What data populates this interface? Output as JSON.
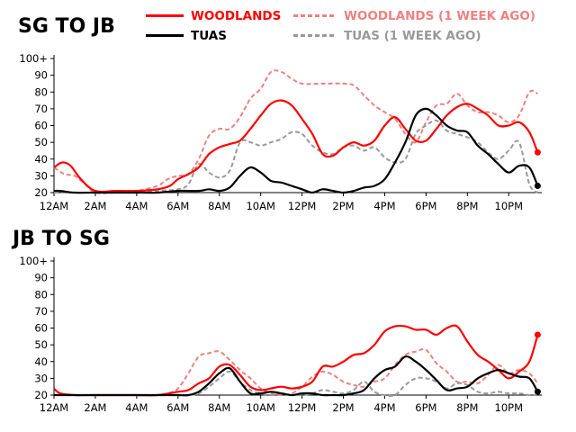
{
  "chart_data": [
    {
      "type": "line",
      "title": "SG TO JB",
      "x_ticks": [
        "12AM",
        "2AM",
        "4AM",
        "6AM",
        "8AM",
        "10AM",
        "12PM",
        "2PM",
        "4PM",
        "6PM",
        "8PM",
        "10PM"
      ],
      "y_ticks": [
        "20",
        "30",
        "40",
        "50",
        "60",
        "70",
        "80",
        "90",
        "100+"
      ],
      "ylim": [
        20,
        100
      ],
      "xlim_hours": [
        0,
        23.6
      ],
      "legend": "top",
      "grid": false,
      "series": [
        {
          "name": "WOODLANDS",
          "color": "#ff0000",
          "style": "solid",
          "end_marker": true,
          "x": [
            0,
            0.4,
            0.8,
            1.3,
            2,
            3,
            4,
            5,
            5.6,
            6,
            6.5,
            7,
            7.5,
            8,
            8.5,
            9,
            9.5,
            10,
            10.5,
            11,
            11.5,
            12,
            12.5,
            13,
            13.5,
            14,
            14.5,
            15,
            15.5,
            16,
            16.5,
            17,
            17.5,
            18,
            18.5,
            19,
            19.5,
            20,
            20.5,
            21,
            21.5,
            22,
            22.5,
            23,
            23.4
          ],
          "y": [
            35,
            38,
            36,
            28,
            21,
            21,
            21,
            22,
            24,
            28,
            31,
            35,
            43,
            47,
            49,
            51,
            58,
            66,
            73,
            75,
            72,
            64,
            55,
            43,
            42,
            47,
            50,
            48,
            51,
            60,
            65,
            58,
            51,
            51,
            58,
            66,
            71,
            73,
            70,
            66,
            60,
            60,
            62,
            56,
            44
          ]
        },
        {
          "name": "WOODLANDS (1 WEEK AGO)",
          "color": "#f08080",
          "style": "dashed",
          "end_marker": false,
          "x": [
            0,
            0.5,
            1,
            1.5,
            2,
            3,
            4,
            5,
            5.5,
            6,
            6.5,
            7,
            7.5,
            8,
            8.5,
            9,
            9.5,
            10,
            10.5,
            11,
            11.5,
            12,
            13,
            14,
            14.5,
            15,
            15.5,
            16,
            16.5,
            17,
            17.5,
            18,
            18.5,
            19,
            19.5,
            20,
            20.5,
            21,
            21.5,
            22,
            22.5,
            23,
            23.4
          ],
          "y": [
            35,
            31,
            30,
            25,
            20,
            20,
            21,
            24,
            28,
            30,
            31,
            40,
            54,
            58,
            58,
            65,
            76,
            82,
            92,
            92,
            88,
            85,
            85,
            85,
            84,
            78,
            72,
            68,
            64,
            55,
            50,
            62,
            72,
            73,
            79,
            72,
            68,
            68,
            66,
            62,
            66,
            80,
            79
          ]
        },
        {
          "name": "TUAS",
          "color": "#000000",
          "style": "solid",
          "end_marker": true,
          "x": [
            0,
            0.3,
            1,
            2,
            3,
            4,
            5,
            6,
            7,
            7.5,
            8,
            8.5,
            9,
            9.5,
            10,
            10.5,
            11,
            11.5,
            12,
            12.5,
            13,
            13.5,
            14,
            14.5,
            15,
            15.5,
            16,
            16.5,
            17,
            17.5,
            18,
            18.5,
            19,
            19.5,
            20,
            20.5,
            21,
            21.5,
            22,
            22.5,
            23,
            23.4
          ],
          "y": [
            21,
            21,
            20,
            20,
            20,
            20,
            20,
            21,
            21,
            22,
            21,
            23,
            30,
            35,
            32,
            27,
            26,
            24,
            22,
            20,
            22,
            21,
            20,
            21,
            23,
            24,
            28,
            38,
            50,
            66,
            70,
            66,
            60,
            57,
            56,
            48,
            43,
            37,
            32,
            36,
            35,
            24
          ]
        },
        {
          "name": "TUAS (1 WEEK AGO)",
          "color": "#999999",
          "style": "dashed",
          "end_marker": false,
          "x": [
            0,
            1,
            2,
            3,
            4,
            5,
            6,
            6.5,
            7,
            7.5,
            8,
            8.5,
            9,
            9.5,
            10,
            10.5,
            11,
            11.5,
            12,
            12.5,
            13,
            13.5,
            14,
            14.5,
            15,
            15.5,
            16,
            16.5,
            17,
            17.5,
            18,
            18.5,
            19,
            19.5,
            20,
            20.5,
            21,
            21.5,
            22,
            22.5,
            23,
            23.4
          ],
          "y": [
            20,
            20,
            20,
            20,
            20,
            21,
            22,
            25,
            37,
            32,
            29,
            33,
            50,
            50,
            48,
            50,
            52,
            56,
            55,
            48,
            44,
            43,
            47,
            48,
            45,
            47,
            41,
            38,
            40,
            55,
            60,
            63,
            57,
            55,
            53,
            50,
            44,
            40,
            45,
            50,
            25,
            20
          ]
        }
      ]
    },
    {
      "type": "line",
      "title": "JB TO SG",
      "x_ticks": [
        "12AM",
        "2AM",
        "4AM",
        "6AM",
        "8AM",
        "10AM",
        "12PM",
        "2PM",
        "4PM",
        "6PM",
        "8PM",
        "10PM"
      ],
      "y_ticks": [
        "20",
        "30",
        "40",
        "50",
        "60",
        "70",
        "80",
        "90",
        "100+"
      ],
      "ylim": [
        20,
        100
      ],
      "xlim_hours": [
        0,
        23.6
      ],
      "grid": false,
      "series": [
        {
          "name": "WOODLANDS",
          "color": "#ff0000",
          "style": "solid",
          "end_marker": true,
          "x": [
            0,
            0.3,
            1,
            2,
            3,
            4,
            5,
            6,
            6.5,
            7,
            7.5,
            8,
            8.5,
            9,
            9.5,
            10,
            10.5,
            11,
            11.5,
            12,
            12.5,
            13,
            13.5,
            14,
            14.5,
            15,
            15.5,
            16,
            16.5,
            17,
            17.5,
            18,
            18.5,
            19,
            19.5,
            20,
            20.5,
            21,
            21.5,
            22,
            22.5,
            23,
            23.4
          ],
          "y": [
            24,
            21,
            20,
            20,
            20,
            20,
            20,
            22,
            23,
            27,
            30,
            37,
            38,
            32,
            25,
            23,
            24,
            25,
            24,
            25,
            28,
            37,
            37,
            40,
            44,
            45,
            50,
            58,
            61,
            61,
            59,
            59,
            56,
            60,
            61,
            52,
            44,
            40,
            35,
            30,
            34,
            40,
            56
          ]
        },
        {
          "name": "WOODLANDS (1 WEEK AGO)",
          "color": "#f08080",
          "style": "dashed",
          "end_marker": false,
          "x": [
            0,
            1,
            2,
            3,
            4,
            5,
            5.5,
            6,
            6.5,
            7,
            7.5,
            8,
            8.5,
            9,
            9.5,
            10,
            10.5,
            11,
            11.5,
            12,
            12.5,
            13,
            13.5,
            14,
            14.5,
            15,
            15.5,
            16,
            16.5,
            17,
            17.5,
            18,
            18.5,
            19,
            19.5,
            20,
            20.5,
            21,
            21.5,
            22,
            22.5,
            23,
            23.4
          ],
          "y": [
            20,
            20,
            20,
            20,
            20,
            20,
            21,
            24,
            33,
            43,
            45,
            46,
            41,
            35,
            30,
            24,
            21,
            20,
            21,
            25,
            31,
            34,
            32,
            28,
            26,
            25,
            28,
            30,
            38,
            44,
            46,
            47,
            39,
            34,
            28,
            28,
            27,
            32,
            38,
            33,
            35,
            33,
            27
          ]
        },
        {
          "name": "TUAS",
          "color": "#000000",
          "style": "solid",
          "end_marker": true,
          "x": [
            0,
            1,
            2,
            3,
            4,
            5,
            6,
            6.5,
            7,
            7.5,
            8,
            8.5,
            9,
            9.5,
            10,
            10.5,
            11,
            11.5,
            12,
            12.5,
            13,
            13.5,
            14,
            14.5,
            15,
            15.5,
            16,
            16.5,
            17,
            17.5,
            18,
            18.5,
            19,
            19.5,
            20,
            20.5,
            21,
            21.5,
            22,
            22.5,
            23,
            23.4
          ],
          "y": [
            20,
            20,
            20,
            20,
            20,
            20,
            20,
            20,
            22,
            27,
            33,
            36,
            28,
            21,
            21,
            22,
            21,
            20,
            21,
            21,
            20,
            20,
            20,
            21,
            23,
            30,
            35,
            37,
            43,
            40,
            35,
            29,
            23,
            24,
            25,
            30,
            33,
            35,
            33,
            31,
            30,
            22
          ]
        },
        {
          "name": "TUAS (1 WEEK AGO)",
          "color": "#999999",
          "style": "dashed",
          "end_marker": false,
          "x": [
            0,
            1,
            2,
            3,
            4,
            5,
            6,
            6.5,
            7,
            7.5,
            8,
            8.5,
            9,
            9.5,
            10,
            10.5,
            11,
            11.5,
            12,
            12.5,
            13,
            13.5,
            14,
            14.5,
            15,
            15.5,
            16,
            16.5,
            17,
            17.5,
            18,
            18.5,
            19,
            19.5,
            20,
            20.5,
            21,
            21.5,
            22,
            22.5,
            23,
            23.4
          ],
          "y": [
            20,
            20,
            20,
            20,
            20,
            20,
            20,
            20,
            21,
            25,
            30,
            34,
            28,
            23,
            21,
            20,
            21,
            20,
            20,
            21,
            23,
            22,
            21,
            23,
            28,
            22,
            20,
            20,
            26,
            30,
            30,
            28,
            24,
            27,
            26,
            22,
            21,
            22,
            21,
            21,
            20,
            20
          ]
        }
      ]
    }
  ]
}
